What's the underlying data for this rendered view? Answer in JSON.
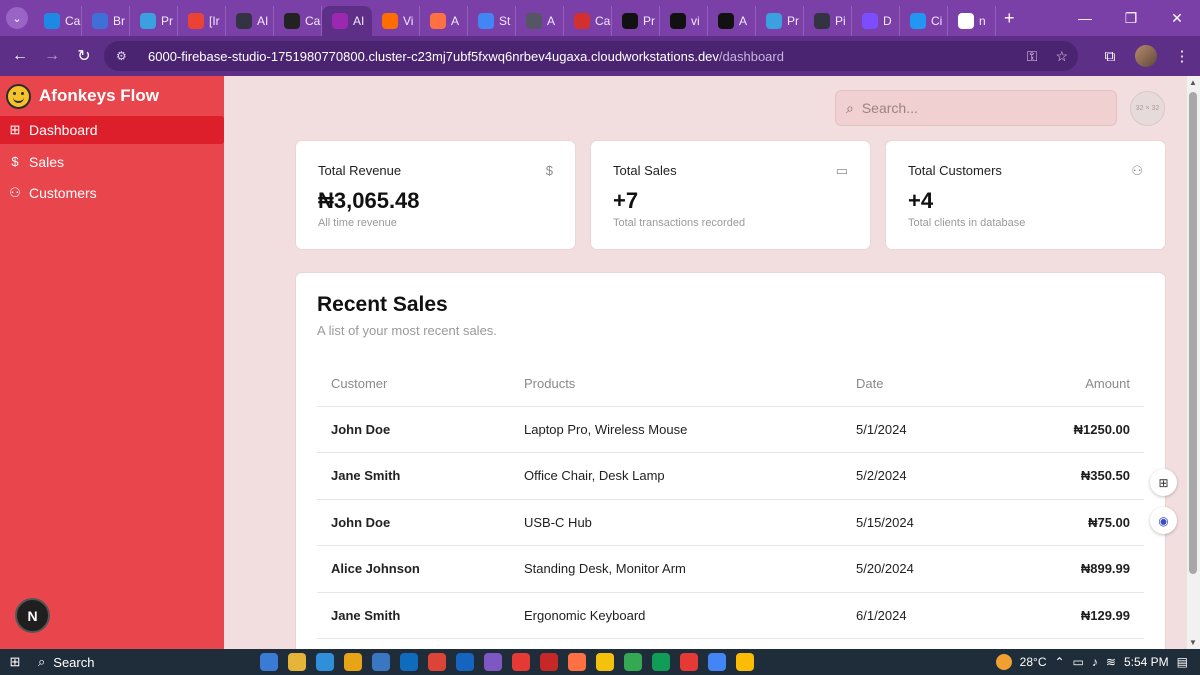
{
  "browser": {
    "tabs": [
      {
        "label": "Ca",
        "color": "#1e88e5"
      },
      {
        "label": "Br",
        "color": "#3f6fd8"
      },
      {
        "label": "Pr",
        "color": "#3aa0e0"
      },
      {
        "label": "[Ir",
        "color": "#ea4335"
      },
      {
        "label": "AI",
        "color": "#333344"
      },
      {
        "label": "Ca",
        "color": "#222222"
      },
      {
        "label": "AI",
        "color": "#9c27b0",
        "active": true
      },
      {
        "label": "Vi",
        "color": "#ff6d00"
      },
      {
        "label": "A",
        "color": "#ff7043"
      },
      {
        "label": "St",
        "color": "#4285f4"
      },
      {
        "label": "A",
        "color": "#555566"
      },
      {
        "label": "Ca",
        "color": "#d32f2f"
      },
      {
        "label": "Pr",
        "color": "#111111"
      },
      {
        "label": "vi",
        "color": "#111111"
      },
      {
        "label": "A",
        "color": "#111111"
      },
      {
        "label": "Pr",
        "color": "#3aa0e0"
      },
      {
        "label": "Pi",
        "color": "#333344"
      },
      {
        "label": "D",
        "color": "#7c4dff"
      },
      {
        "label": "Ci",
        "color": "#2196f3"
      },
      {
        "label": "n",
        "color": "#ffffff"
      }
    ],
    "url_host": "6000-firebase-studio-1751980770800.cluster-c23mj7ubf5fxwq6nrbev4ugaxa.cloudworkstations.dev",
    "url_path": "/dashboard"
  },
  "sidebar": {
    "brand": "Afonkeys Flow",
    "items": [
      {
        "label": "Dashboard",
        "icon": "grid-icon",
        "glyph": "⊞",
        "active": true
      },
      {
        "label": "Sales",
        "icon": "dollar-icon",
        "glyph": "$",
        "active": false
      },
      {
        "label": "Customers",
        "icon": "users-icon",
        "glyph": "⚇",
        "active": false
      }
    ],
    "badge": "N"
  },
  "header": {
    "search_placeholder": "Search...",
    "avatar_text": "32 × 32"
  },
  "stats": [
    {
      "title": "Total Revenue",
      "value": "₦3,065.48",
      "sub": "All time revenue",
      "icon": "dollar-icon",
      "glyph": "$"
    },
    {
      "title": "Total Sales",
      "value": "+7",
      "sub": "Total transactions recorded",
      "icon": "credit-card-icon",
      "glyph": "▭"
    },
    {
      "title": "Total Customers",
      "value": "+4",
      "sub": "Total clients in database",
      "icon": "users-icon",
      "glyph": "⚇"
    }
  ],
  "recent_sales": {
    "title": "Recent Sales",
    "description": "A list of your most recent sales.",
    "columns": [
      "Customer",
      "Products",
      "Date",
      "Amount"
    ],
    "rows": [
      {
        "customer": "John Doe",
        "products": "Laptop Pro, Wireless Mouse",
        "date": "5/1/2024",
        "amount": "₦1250.00"
      },
      {
        "customer": "Jane Smith",
        "products": "Office Chair, Desk Lamp",
        "date": "5/2/2024",
        "amount": "₦350.50"
      },
      {
        "customer": "John Doe",
        "products": "USB-C Hub",
        "date": "5/15/2024",
        "amount": "₦75.00"
      },
      {
        "customer": "Alice Johnson",
        "products": "Standing Desk, Monitor Arm",
        "date": "5/20/2024",
        "amount": "₦899.99"
      },
      {
        "customer": "Jane Smith",
        "products": "Ergonomic Keyboard",
        "date": "6/1/2024",
        "amount": "₦129.99"
      }
    ]
  },
  "taskbar": {
    "search_label": "Search",
    "temperature": "28°C",
    "time": "5:54 PM",
    "apps": [
      "#3a7bd5",
      "#e5b53a",
      "#2f8fdb",
      "#e8a317",
      "#3a77c2",
      "#0f6cbd",
      "#db4437",
      "#1565c0",
      "#7e57c2",
      "#e53935",
      "#c62828",
      "#ff7043",
      "#f4c20d",
      "#34a853",
      "#0f9d58",
      "#e53935",
      "#4285f4",
      "#fbbc05"
    ]
  },
  "colors": {
    "sidebar": "#e9454d",
    "sidebar_active": "#dd1f2c",
    "main_bg": "#f2dede",
    "browser_frame": "#7b3fa8"
  }
}
